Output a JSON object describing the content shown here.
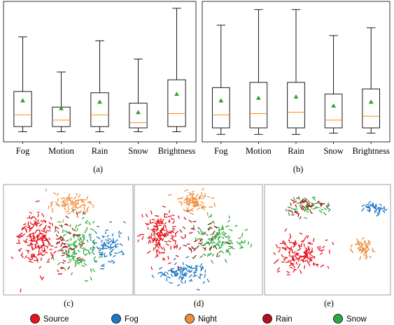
{
  "chart_data": [
    {
      "id": "a",
      "type": "box",
      "panel_label": "(a)",
      "categories": [
        "Fog",
        "Motion",
        "Rain",
        "Snow",
        "Brightness"
      ],
      "ylim": [
        0,
        1
      ],
      "boxes": [
        {
          "whislo": 0.04,
          "q1": 0.08,
          "med": 0.17,
          "q3": 0.35,
          "whishi": 0.77,
          "mean": 0.28
        },
        {
          "whislo": 0.04,
          "q1": 0.08,
          "med": 0.13,
          "q3": 0.23,
          "whishi": 0.5,
          "mean": 0.22
        },
        {
          "whislo": 0.04,
          "q1": 0.08,
          "med": 0.17,
          "q3": 0.34,
          "whishi": 0.74,
          "mean": 0.27
        },
        {
          "whislo": 0.04,
          "q1": 0.07,
          "med": 0.11,
          "q3": 0.26,
          "whishi": 0.6,
          "mean": 0.19
        },
        {
          "whislo": 0.04,
          "q1": 0.08,
          "med": 0.18,
          "q3": 0.44,
          "whishi": 0.99,
          "mean": 0.33
        }
      ]
    },
    {
      "id": "b",
      "type": "box",
      "panel_label": "(b)",
      "categories": [
        "Fog",
        "Motion",
        "Rain",
        "Snow",
        "Brightness"
      ],
      "ylim": [
        0,
        1
      ],
      "boxes": [
        {
          "whislo": 0.02,
          "q1": 0.07,
          "med": 0.17,
          "q3": 0.38,
          "whishi": 0.86,
          "mean": 0.28
        },
        {
          "whislo": 0.02,
          "q1": 0.07,
          "med": 0.18,
          "q3": 0.42,
          "whishi": 0.98,
          "mean": 0.3
        },
        {
          "whislo": 0.02,
          "q1": 0.07,
          "med": 0.19,
          "q3": 0.42,
          "whishi": 0.98,
          "mean": 0.31
        },
        {
          "whislo": 0.03,
          "q1": 0.07,
          "med": 0.13,
          "q3": 0.33,
          "whishi": 0.78,
          "mean": 0.24
        },
        {
          "whislo": 0.03,
          "q1": 0.07,
          "med": 0.16,
          "q3": 0.37,
          "whishi": 0.84,
          "mean": 0.27
        }
      ]
    },
    {
      "id": "c",
      "type": "scatter",
      "panel_label": "(c)",
      "clusters": [
        {
          "series": "Source",
          "cx": 0.25,
          "cy": 0.5,
          "rx": 0.2,
          "ry": 0.3,
          "n": 170
        },
        {
          "series": "Night",
          "cx": 0.53,
          "cy": 0.17,
          "rx": 0.2,
          "ry": 0.12,
          "n": 80
        },
        {
          "series": "Fog",
          "cx": 0.8,
          "cy": 0.55,
          "rx": 0.15,
          "ry": 0.22,
          "n": 75
        },
        {
          "series": "Snow",
          "cx": 0.56,
          "cy": 0.57,
          "rx": 0.18,
          "ry": 0.3,
          "n": 120
        },
        {
          "series": "Rain",
          "cx": 0.45,
          "cy": 0.55,
          "rx": 0.27,
          "ry": 0.3,
          "n": 50
        }
      ]
    },
    {
      "id": "d",
      "type": "scatter",
      "panel_label": "(d)",
      "clusters": [
        {
          "series": "Source",
          "cx": 0.2,
          "cy": 0.45,
          "rx": 0.17,
          "ry": 0.25,
          "n": 140
        },
        {
          "series": "Night",
          "cx": 0.47,
          "cy": 0.15,
          "rx": 0.14,
          "ry": 0.12,
          "n": 75
        },
        {
          "series": "Fog",
          "cx": 0.4,
          "cy": 0.8,
          "rx": 0.28,
          "ry": 0.12,
          "n": 90
        },
        {
          "series": "Snow",
          "cx": 0.66,
          "cy": 0.52,
          "rx": 0.22,
          "ry": 0.22,
          "n": 110
        },
        {
          "series": "Rain",
          "cx": 0.45,
          "cy": 0.5,
          "rx": 0.25,
          "ry": 0.28,
          "n": 45
        }
      ]
    },
    {
      "id": "e",
      "type": "scatter",
      "panel_label": "(e)",
      "clusters": [
        {
          "series": "Snow",
          "cx": 0.35,
          "cy": 0.21,
          "rx": 0.22,
          "ry": 0.09,
          "n": 45
        },
        {
          "series": "Rain",
          "cx": 0.34,
          "cy": 0.2,
          "rx": 0.2,
          "ry": 0.09,
          "n": 35
        },
        {
          "series": "Fog",
          "cx": 0.87,
          "cy": 0.22,
          "rx": 0.1,
          "ry": 0.07,
          "n": 35
        },
        {
          "series": "Source",
          "cx": 0.28,
          "cy": 0.64,
          "rx": 0.23,
          "ry": 0.2,
          "n": 140
        },
        {
          "series": "Night",
          "cx": 0.79,
          "cy": 0.58,
          "rx": 0.11,
          "ry": 0.1,
          "n": 45
        }
      ]
    }
  ],
  "legend": [
    {
      "label": "Source",
      "color": "#e8131b"
    },
    {
      "label": "Fog",
      "color": "#1f77c4"
    },
    {
      "label": "Night",
      "color": "#f08c3a"
    },
    {
      "label": "Rain",
      "color": "#b0121d"
    },
    {
      "label": "Snow",
      "color": "#2ca83c"
    }
  ],
  "colors": {
    "box_edge": "#000000",
    "median": "#ff8c1a",
    "mean_marker": "#2ca02c",
    "Source": "#e8131b",
    "Fog": "#1f77c4",
    "Night": "#f08c3a",
    "Rain": "#b0121d",
    "Snow": "#2ca83c"
  }
}
